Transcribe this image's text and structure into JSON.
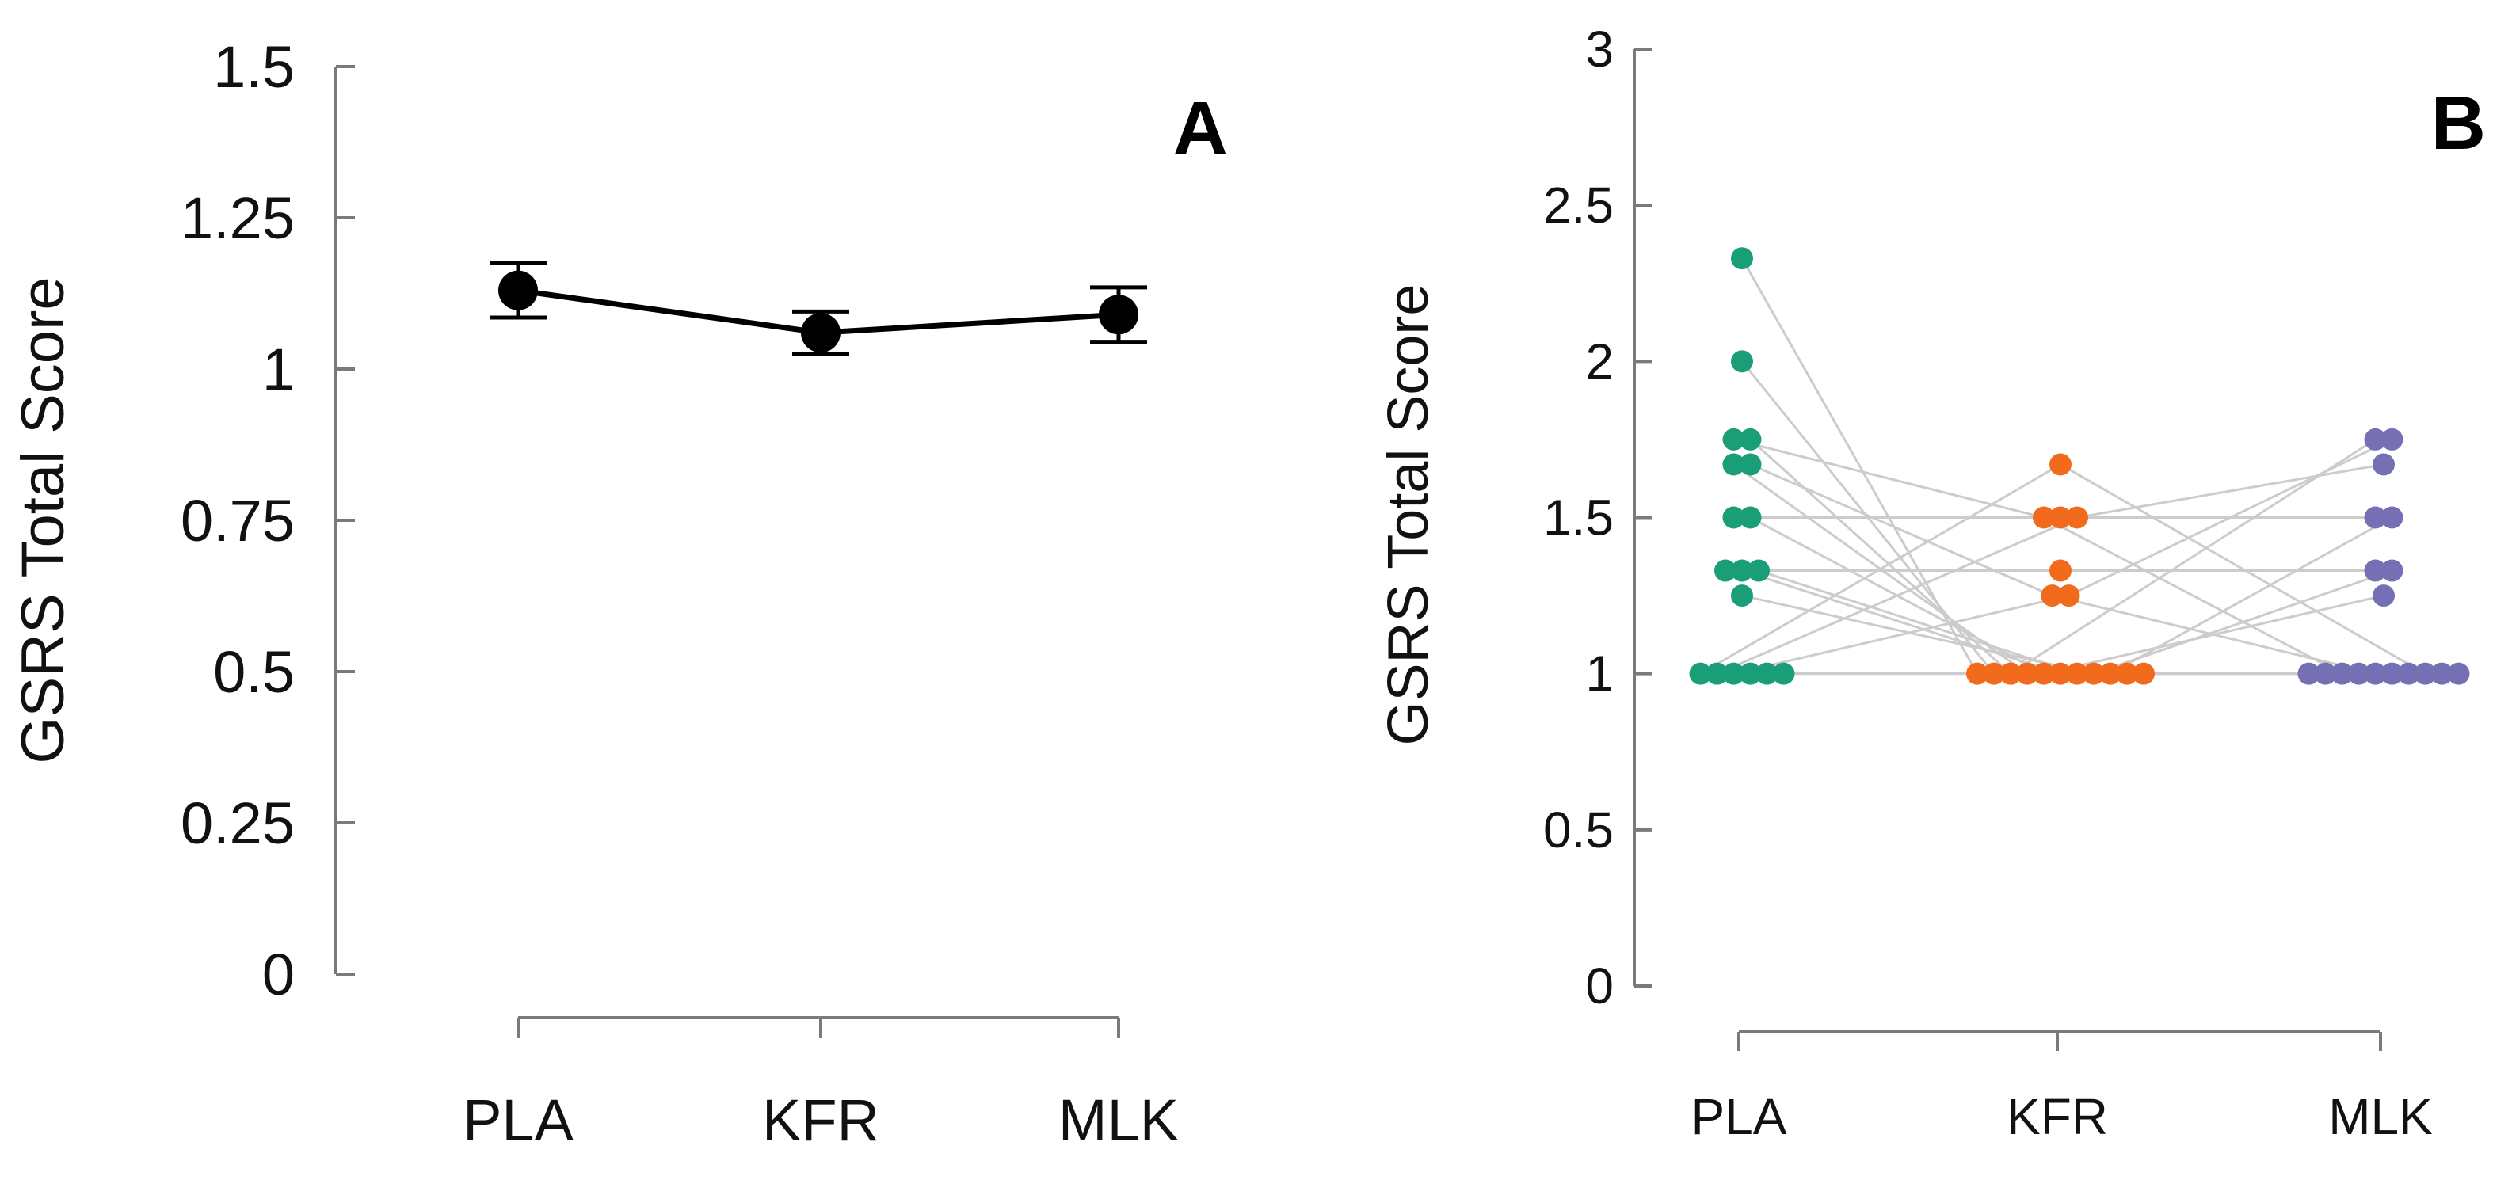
{
  "chart_data": [
    {
      "panel": "A",
      "type": "line",
      "categories": [
        "PLA",
        "KFR",
        "MLK"
      ],
      "series": [
        {
          "values": [
            1.13,
            1.06,
            1.09
          ],
          "error": [
            0.045,
            0.035,
            0.045
          ]
        }
      ],
      "ylabel": "GSRS Total Score",
      "yticks": [
        "0",
        "0.25",
        "0.5",
        "0.75",
        "1",
        "1.25",
        "1.5"
      ],
      "ylim": [
        0,
        1.5
      ],
      "grid": false,
      "colors": {
        "marker": "#000000",
        "line": "#000000"
      }
    },
    {
      "panel": "B",
      "type": "scatter",
      "categories": [
        "PLA",
        "KFR",
        "MLK"
      ],
      "ylabel": "GSRS Total Score",
      "yticks": [
        "0",
        "0.5",
        "1",
        "1.5",
        "2",
        "2.5",
        "3"
      ],
      "ylim": [
        0,
        3
      ],
      "grid": false,
      "colors": {
        "PLA": "#1a9e77",
        "KFR": "#f26b1d",
        "MLK": "#7570b3",
        "connector": "#cccccc"
      },
      "subjects": [
        [
          2.33,
          1.0,
          1.0
        ],
        [
          2.0,
          1.0,
          1.0
        ],
        [
          1.75,
          1.5,
          1.0
        ],
        [
          1.75,
          1.0,
          1.75
        ],
        [
          1.67,
          1.0,
          1.0
        ],
        [
          1.67,
          1.25,
          1.0
        ],
        [
          1.5,
          1.5,
          1.5
        ],
        [
          1.5,
          1.0,
          1.25
        ],
        [
          1.33,
          1.33,
          1.33
        ],
        [
          1.33,
          1.0,
          1.0
        ],
        [
          1.33,
          1.0,
          1.0
        ],
        [
          1.25,
          1.0,
          1.33
        ],
        [
          1.0,
          1.67,
          1.0
        ],
        [
          1.0,
          1.5,
          1.67
        ],
        [
          1.0,
          1.25,
          1.75
        ],
        [
          1.0,
          1.0,
          1.5
        ],
        [
          1.0,
          1.0,
          1.0
        ],
        [
          1.0,
          1.0,
          1.0
        ]
      ]
    }
  ]
}
